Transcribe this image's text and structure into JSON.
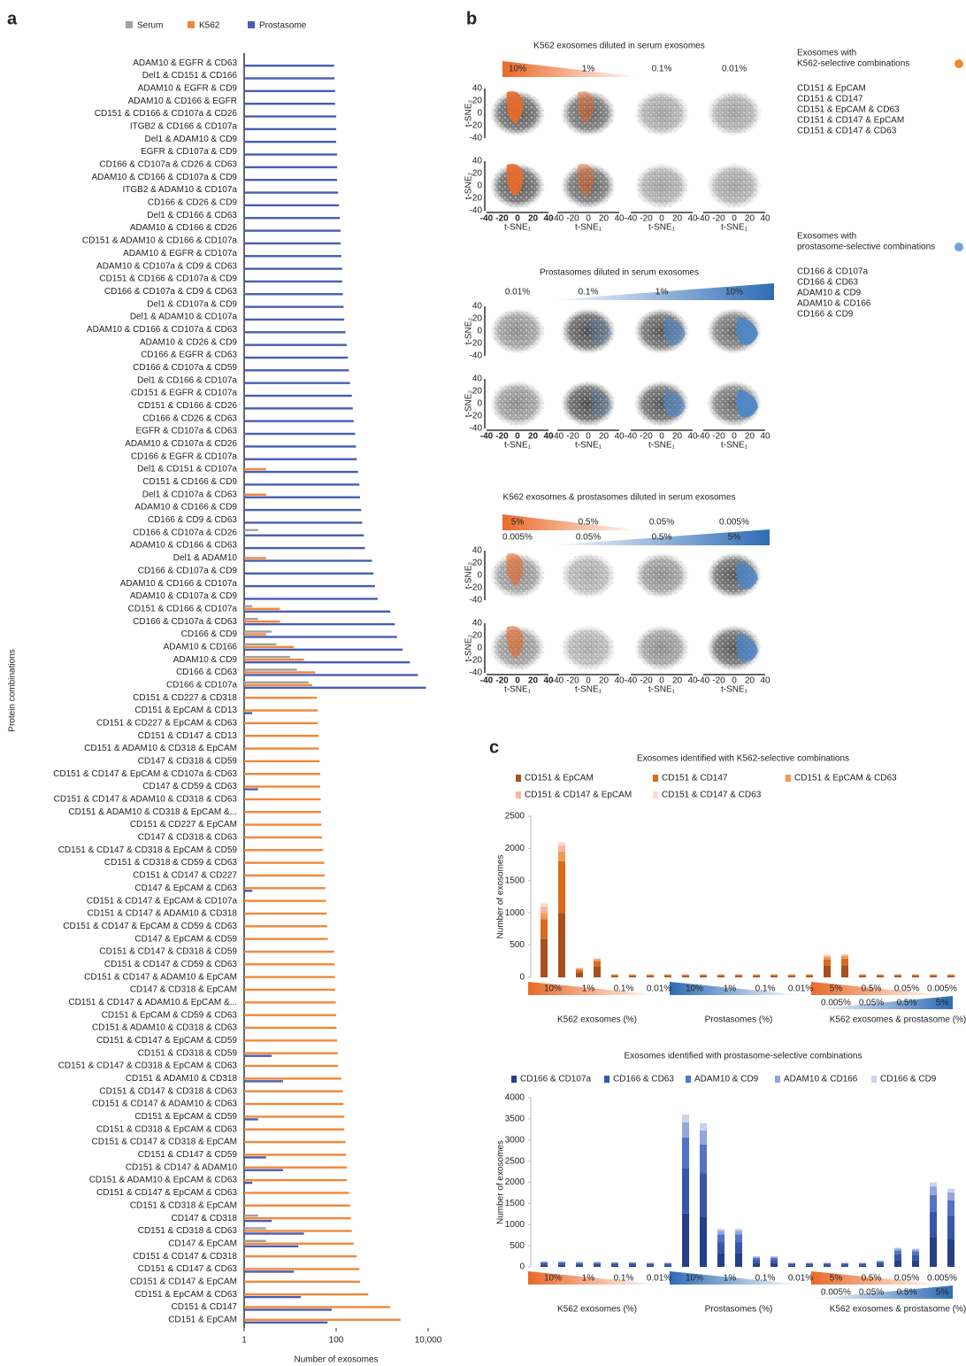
{
  "panel_labels": [
    "a",
    "b",
    "c"
  ],
  "chart_data": [
    {
      "type": "hbar",
      "x_label": "Number of exosomes",
      "y_label": "Protein combinations",
      "x_scale": "log",
      "xlim": [
        1,
        10000
      ],
      "xticks": [
        1,
        100,
        {
          "value": 10000,
          "label": "10,000"
        }
      ],
      "legend": "top",
      "categories": [
        "ADAM10 & EGFR & CD63",
        "Del1 & CD151 & CD166",
        "ADAM10 & EGFR & CD9",
        "ADAM10 & CD166 & EGFR",
        "CD151 & CD166 & CD107a & CD26",
        "ITGB2 & CD166 & CD107a",
        "Del1 & ADAM10 & CD9",
        "EGFR & CD107a & CD9",
        "CD166 & CD107a & CD26 & CD63",
        "ADAM10 & CD166 & CD107a & CD9",
        "ITGB2 & ADAM10 & CD107a",
        "CD166 & CD26 & CD9",
        "Del1 & CD166 & CD63",
        "ADAM10 & CD166 & CD26",
        "CD151 & ADAM10 & CD166 & CD107a",
        "ADAM10 & EGFR & CD107a",
        "ADAM10 & CD107a & CD9 & CD63",
        "CD151 & CD166 & CD107a & CD9",
        "CD166 & CD107a & CD9 & CD63",
        "Del1 & CD107a & CD9",
        "Del1 & ADAM10 & CD107a",
        "ADAM10 & CD166 & CD107a & CD63",
        "ADAM10 & CD26 & CD9",
        "CD166 & EGFR & CD63",
        "CD166 & CD107a & CD59",
        "Del1 & CD166 & CD107a",
        "CD151 & EGFR & CD107a",
        "CD151 & CD166 & CD26",
        "CD166 & CD26 & CD63",
        "EGFR & CD107a & CD63",
        "ADAM10 & CD107a & CD26",
        "CD166 & EGFR & CD107a",
        "Del1 & CD151 & CD107a",
        "CD151 & CD166 & CD9",
        "Del1 & CD107a & CD63",
        "ADAM10 & CD166 & CD9",
        "CD166 & CD9 & CD63",
        "CD166 & CD107a & CD26",
        "ADAM10 & CD166 & CD63",
        "Del1 & ADAM10",
        "CD166 & CD107a & CD9",
        "ADAM10 & CD166 & CD107a",
        "ADAM10 & CD107a & CD9",
        "CD151 & CD166 & CD107a",
        "CD166 & CD107a & CD63",
        "CD166 & CD9",
        "ADAM10 & CD166",
        "ADAM10 & CD9",
        "CD166 & CD63",
        "CD166 & CD107a",
        "CD151 & CD227 & CD318",
        "CD151 & EpCAM & CD13",
        "CD151 & CD227 & EpCAM & CD63",
        "CD151 & CD147 & CD13",
        "CD151 & ADAM10 & CD318 & EpCAM",
        "CD147 & CD318 & CD59",
        "CD151 & CD147 & EpCAM & CD107a & CD63",
        "CD147 & CD59 & CD63",
        "CD151 & CD147 & ADAM10 & CD318 & CD63",
        "CD151 & ADAM10 & CD318 & EpCAM &...",
        "CD151 & CD227 & EpCAM",
        "CD147 & CD318 & CD63",
        "CD151 & CD147 & CD318 & EpCAM & CD59",
        "CD151 & CD318 & CD59 & CD63",
        "CD151 & CD147 & CD227",
        "CD147 & EpCAM & CD63",
        "CD151 & CD147 & EpCAM & CD107a",
        "CD151 & CD147 & ADAM10 & CD318",
        "CD151 & CD147 & EpCAM & CD59 & CD63",
        "CD147 & EpCAM & CD59",
        "CD151 & CD147 & CD318 & CD59",
        "CD151 & CD147 & CD59 & CD63",
        "CD151 & CD147 & ADAM10 & EpCAM",
        "CD147 & CD318 & EpCAM",
        "CD151 & CD147 & ADAM10 & EpCAM &...",
        "CD151 & EpCAM & CD59 & CD63",
        "CD151 & ADAM10 & CD318 & CD63",
        "CD151 & CD147 & EpCAM & CD59",
        "CD151 & CD318 & CD59",
        "CD151 & CD147 & CD318 & EpCAM & CD63",
        "CD151 & ADAM10 & CD318",
        "CD151 & CD147 & CD318 & CD63",
        "CD151 & CD147 & ADAM10 & CD63",
        "CD151 & EpCAM & CD59",
        "CD151 & CD318 & EpCAM & CD63",
        "CD151 & CD147 & CD318 & EpCAM",
        "CD151 & CD147 & CD59",
        "CD151 & CD147 & ADAM10",
        "CD151 & ADAM10 & EpCAM & CD63",
        "CD151 & CD147 & EpCAM & CD63",
        "CD151 & CD318 & EpCAM",
        "CD147 & CD318",
        "CD151 & CD318 & CD63",
        "CD147 & EpCAM",
        "CD151 & CD147 & CD318",
        "CD151 & CD147 & CD63",
        "CD151 & CD147 & EpCAM",
        "CD151 & EpCAM & CD63",
        "CD151 & CD147",
        "CD151 & EpCAM"
      ],
      "series": [
        {
          "name": "Serum",
          "color": "#a0a0a0",
          "values": [
            null,
            null,
            null,
            null,
            null,
            null,
            null,
            null,
            null,
            null,
            null,
            null,
            null,
            null,
            null,
            null,
            null,
            null,
            null,
            null,
            null,
            null,
            null,
            null,
            null,
            null,
            null,
            null,
            null,
            null,
            null,
            null,
            null,
            null,
            null,
            null,
            null,
            2,
            null,
            null,
            null,
            null,
            null,
            1.5,
            2,
            4,
            5,
            10,
            14,
            25,
            null,
            null,
            null,
            null,
            null,
            null,
            null,
            null,
            null,
            null,
            null,
            null,
            null,
            null,
            null,
            null,
            null,
            null,
            null,
            null,
            null,
            null,
            null,
            null,
            null,
            null,
            null,
            null,
            null,
            null,
            null,
            null,
            null,
            null,
            null,
            null,
            null,
            null,
            null,
            null,
            null,
            2,
            3,
            3,
            null,
            null,
            null,
            null,
            null,
            null
          ]
        },
        {
          "name": "K562",
          "color": "#f0883a",
          "values": [
            null,
            null,
            null,
            null,
            null,
            null,
            null,
            null,
            null,
            null,
            null,
            null,
            null,
            null,
            null,
            null,
            null,
            null,
            null,
            null,
            null,
            null,
            null,
            null,
            null,
            null,
            null,
            null,
            null,
            null,
            null,
            null,
            3,
            null,
            3,
            null,
            null,
            null,
            null,
            3,
            null,
            null,
            null,
            6,
            6,
            3,
            12,
            20,
            35,
            30,
            38,
            40,
            40,
            42,
            42,
            44,
            45,
            45,
            46,
            47,
            48,
            50,
            52,
            55,
            56,
            58,
            60,
            62,
            64,
            66,
            90,
            92,
            94,
            96,
            98,
            100,
            102,
            105,
            108,
            110,
            130,
            140,
            145,
            150,
            150,
            160,
            165,
            170,
            170,
            190,
            200,
            210,
            220,
            240,
            280,
            320,
            330,
            500,
            1500,
            2500
          ]
        },
        {
          "name": "Prostasome",
          "color": "#4a5db0",
          "values": [
            90,
            92,
            95,
            95,
            100,
            100,
            100,
            105,
            105,
            105,
            110,
            115,
            120,
            125,
            125,
            130,
            135,
            135,
            140,
            145,
            150,
            160,
            170,
            180,
            190,
            200,
            220,
            230,
            240,
            260,
            270,
            280,
            300,
            320,
            330,
            350,
            370,
            400,
            420,
            600,
            650,
            700,
            800,
            1500,
            1900,
            2100,
            2800,
            4000,
            6000,
            9000,
            null,
            1.5,
            null,
            null,
            null,
            null,
            null,
            2,
            null,
            null,
            null,
            null,
            null,
            null,
            null,
            1.5,
            null,
            null,
            null,
            null,
            null,
            null,
            null,
            null,
            null,
            null,
            null,
            null,
            4,
            null,
            7,
            null,
            null,
            2,
            null,
            null,
            3,
            7,
            1.5,
            null,
            null,
            4,
            20,
            15,
            null,
            12,
            null,
            17,
            80,
            65
          ]
        }
      ]
    },
    {
      "type": "stacked-bar",
      "title": "Exosomes identified with K562-selective combinations",
      "title_color": "#f0883a",
      "y_label": "Number of exosomes",
      "ylim": [
        0,
        2500
      ],
      "yticks": [
        0,
        500,
        1000,
        1500,
        2000,
        2500
      ],
      "categories": [
        "10%",
        null,
        "1%",
        null,
        "0.1%",
        null,
        "0.01%",
        null,
        "10%",
        null,
        "1%",
        null,
        "0.1%",
        null,
        "0.01%",
        null,
        "5%",
        null,
        "0.5%",
        null,
        "0.05%",
        null,
        "0.005%",
        null
      ],
      "categories_second_row": [
        null,
        null,
        null,
        null,
        null,
        null,
        null,
        null,
        null,
        null,
        null,
        null,
        null,
        null,
        null,
        null,
        "0.005%",
        null,
        "0.05%",
        null,
        "0.5%",
        null,
        "5%",
        null
      ],
      "group_labels": [
        "K562 exosomes (%)",
        "Prostasomes (%)",
        "K562 exosomes & prostasome (%)"
      ],
      "series": [
        {
          "name": "CD151 & EpCAM",
          "color": "#a8501e",
          "values": [
            600,
            1000,
            80,
            170,
            20,
            20,
            20,
            20,
            20,
            20,
            20,
            20,
            20,
            20,
            20,
            20,
            180,
            190,
            20,
            20,
            20,
            20,
            20,
            20
          ]
        },
        {
          "name": "CD151 & CD147",
          "color": "#d96a1e",
          "values": [
            300,
            800,
            40,
            80,
            15,
            15,
            15,
            15,
            15,
            15,
            15,
            15,
            15,
            15,
            15,
            15,
            100,
            100,
            15,
            15,
            15,
            15,
            15,
            15
          ]
        },
        {
          "name": "CD151 & EpCAM & CD63",
          "color": "#f09a55",
          "values": [
            100,
            150,
            15,
            25,
            8,
            8,
            8,
            8,
            8,
            8,
            8,
            8,
            8,
            8,
            8,
            8,
            40,
            40,
            8,
            8,
            8,
            8,
            8,
            8
          ]
        },
        {
          "name": "CD151 & CD147 & EpCAM",
          "color": "#f4b89c",
          "values": [
            100,
            100,
            10,
            15,
            5,
            5,
            5,
            5,
            5,
            5,
            5,
            5,
            5,
            5,
            5,
            5,
            20,
            20,
            5,
            5,
            5,
            5,
            5,
            5
          ]
        },
        {
          "name": "CD151 & CD147 & CD63",
          "color": "#f9ddd2",
          "values": [
            50,
            50,
            5,
            10,
            2,
            2,
            2,
            2,
            2,
            2,
            2,
            2,
            2,
            2,
            2,
            2,
            10,
            10,
            2,
            2,
            2,
            2,
            2,
            2
          ]
        }
      ]
    },
    {
      "type": "stacked-bar",
      "title": "Exosomes identified with prostasome-selective combinations",
      "title_color": "#4a6fc0",
      "y_label": "Number of exosomes",
      "ylim": [
        0,
        4000
      ],
      "yticks": [
        0,
        500,
        1000,
        1500,
        2000,
        2500,
        3000,
        3500,
        4000
      ],
      "categories": [
        "10%",
        null,
        "1%",
        null,
        "0.1%",
        null,
        "0.01%",
        null,
        "10%",
        null,
        "1%",
        null,
        "0.1%",
        null,
        "0.01%",
        null,
        "5%",
        null,
        "0.5%",
        null,
        "0.05%",
        null,
        "0.005%",
        null
      ],
      "categories_second_row": [
        null,
        null,
        null,
        null,
        null,
        null,
        null,
        null,
        null,
        null,
        null,
        null,
        null,
        null,
        null,
        null,
        "0.005%",
        null,
        "0.05%",
        null,
        "0.5%",
        null,
        "5%",
        null
      ],
      "group_labels": [
        "K562 exosomes (%)",
        "Prostasomes (%)",
        "K562 exosomes & prostasome (%)"
      ],
      "series": [
        {
          "name": "CD166 & CD107a",
          "color": "#263f86",
          "values": [
            45,
            45,
            40,
            40,
            40,
            40,
            35,
            35,
            1260,
            1190,
            315,
            315,
            90,
            90,
            35,
            35,
            35,
            35,
            35,
            50,
            160,
            150,
            700,
            650
          ]
        },
        {
          "name": "CD166 & CD63",
          "color": "#3657a8",
          "values": [
            40,
            40,
            35,
            35,
            35,
            35,
            30,
            30,
            1080,
            1020,
            270,
            270,
            75,
            75,
            30,
            30,
            30,
            30,
            30,
            45,
            135,
            130,
            600,
            555
          ]
        },
        {
          "name": "ADAM10 & CD9",
          "color": "#5473c4",
          "values": [
            25,
            25,
            25,
            25,
            20,
            20,
            20,
            20,
            720,
            680,
            180,
            180,
            50,
            50,
            20,
            20,
            20,
            20,
            20,
            30,
            90,
            85,
            400,
            370
          ]
        },
        {
          "name": "ADAM10 & CD166",
          "color": "#93a7dc",
          "values": [
            15,
            15,
            15,
            15,
            10,
            10,
            10,
            10,
            360,
            340,
            90,
            90,
            25,
            25,
            10,
            10,
            10,
            10,
            10,
            15,
            45,
            45,
            200,
            185
          ]
        },
        {
          "name": "CD166 & CD9",
          "color": "#cbd3ef",
          "values": [
            5,
            5,
            5,
            5,
            5,
            5,
            5,
            5,
            180,
            170,
            45,
            45,
            10,
            10,
            5,
            5,
            5,
            5,
            5,
            10,
            20,
            20,
            100,
            90
          ]
        }
      ]
    }
  ],
  "panel_b": {
    "sections": [
      {
        "title": "K562 exosomes diluted in serum exosomes",
        "levels": [
          "10%",
          "1%",
          "0.1%",
          "0.01%"
        ]
      },
      {
        "title": "Prostasomes diluted in serum exosomes",
        "levels": [
          "0.01%",
          "0.1%",
          "1%",
          "10%"
        ]
      },
      {
        "title": "K562 exosomes & prostasomes diluted in serum exosomes",
        "levels": [
          "5%",
          "0.5%",
          "0.05%",
          "0.005%"
        ],
        "levels2": [
          "0.005%",
          "0.05%",
          "0.5%",
          "5%"
        ]
      }
    ],
    "tsne_ticks": [
      -40,
      -20,
      0,
      20,
      40
    ],
    "x_label": "t-SNE₁",
    "y_label": "t-SNE₂",
    "legends": [
      {
        "title": [
          "Exosomes with",
          "K562-selective combinations"
        ],
        "items": [
          "CD151 & EpCAM",
          "CD151 & CD147",
          "CD151 & EpCAM & CD63",
          "CD151 & CD147 & EpCAM",
          "CD151 & CD147 & CD63"
        ]
      },
      {
        "title": [
          "Exosomes with",
          "prostasome-selective combinations"
        ],
        "items": [
          "CD166 & CD107a",
          "CD166 & CD63",
          "ADAM10 & CD9",
          "ADAM10 & CD166",
          "CD166 & CD9"
        ]
      }
    ]
  }
}
